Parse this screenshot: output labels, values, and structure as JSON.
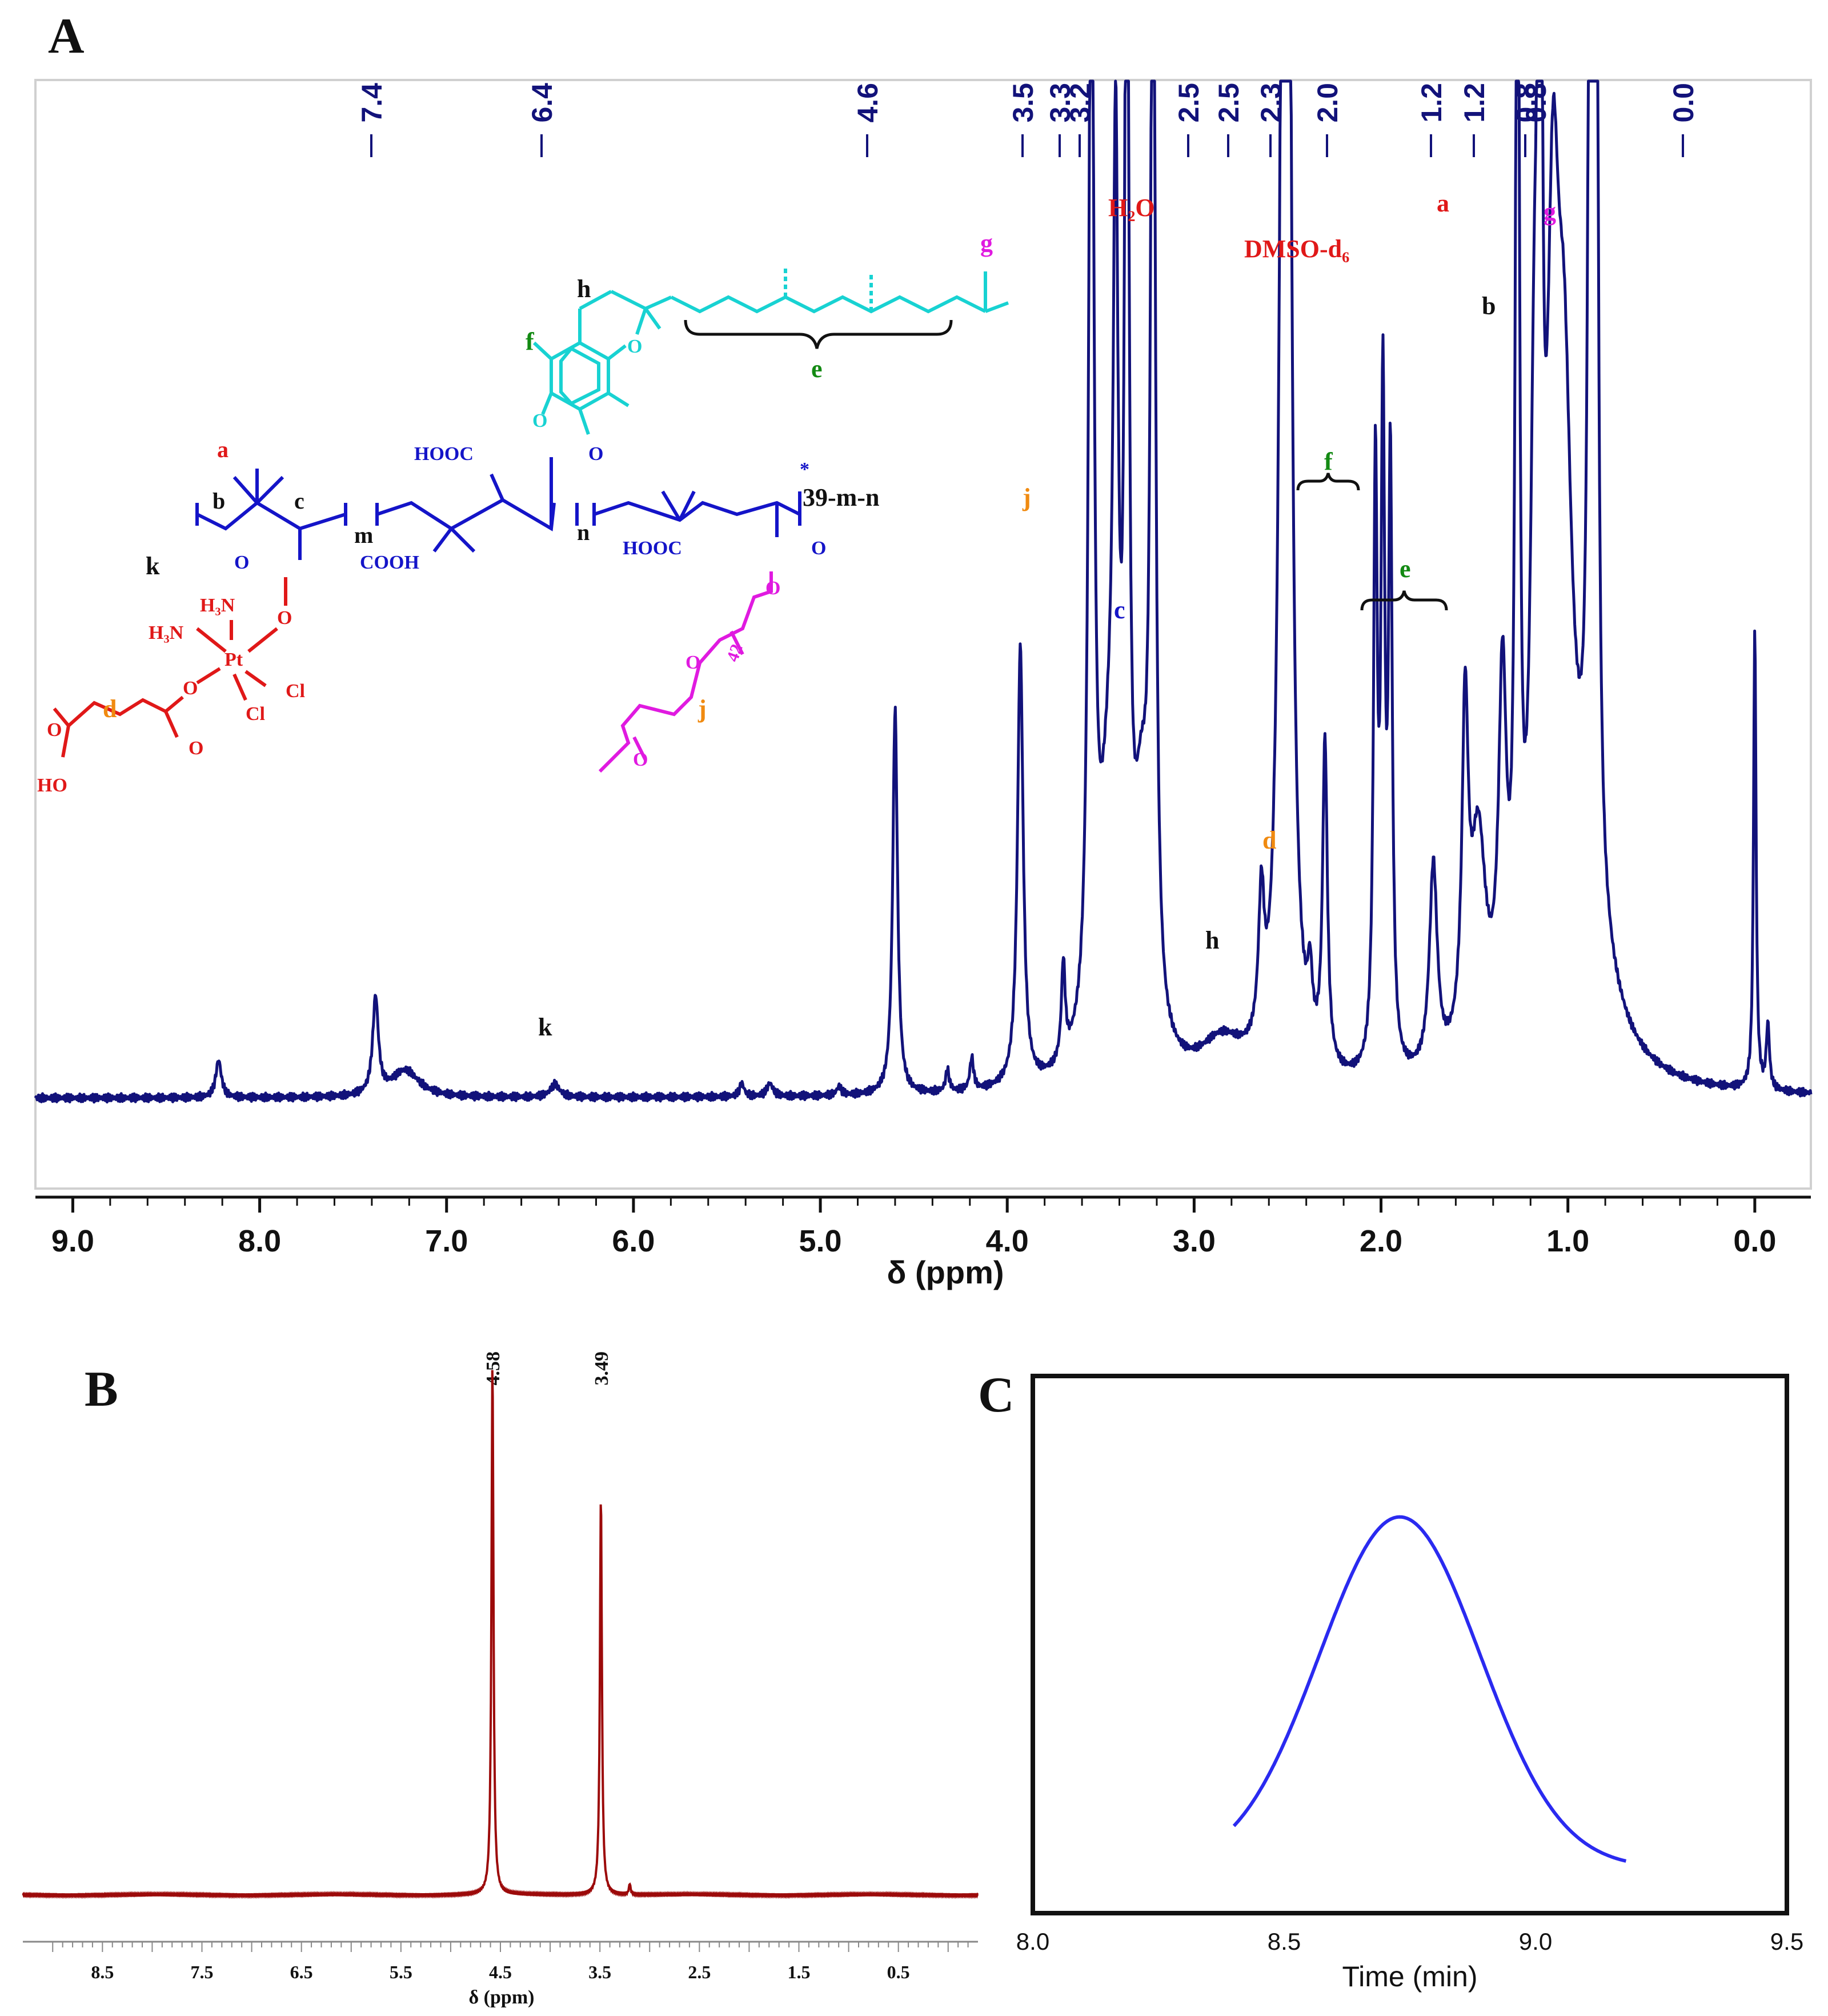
{
  "colors": {
    "navy": "#12127a",
    "blue": "#1414c8",
    "cyan": "#18d2d2",
    "red": "#e01818",
    "magenta": "#e01ae0",
    "green": "#138a13",
    "orange": "#f08a10",
    "darkred": "#9c0a0a",
    "lightblue": "#2a2af0",
    "black": "#111111"
  },
  "chart_data": [
    {
      "panel": "A",
      "type": "line",
      "title": "",
      "panel_label": "A",
      "xlabel": "δ (ppm)",
      "ylabel": "",
      "xlim": [
        9.2,
        -0.3
      ],
      "ylim": [
        -0.05,
        1.0
      ],
      "x_ticks": [
        "9.0",
        "8.0",
        "7.0",
        "6.0",
        "5.0",
        "4.0",
        "3.0",
        "2.0",
        "1.0",
        "0.0"
      ],
      "x_tick_values": [
        9,
        8,
        7,
        6,
        5,
        4,
        3,
        2,
        1,
        0
      ],
      "peak_labels": [
        "7.4",
        "6.4",
        "4.6",
        "3.5",
        "3.3",
        "3.2",
        "2.5",
        "2.5",
        "2.3",
        "2.0",
        "1.2",
        "1.2",
        "0.8",
        "0.8",
        "0.0"
      ],
      "peaks": [
        {
          "x": 8.22,
          "h": 0.035,
          "w": 0.018
        },
        {
          "x": 7.38,
          "h": 0.09,
          "w": 0.018
        },
        {
          "x": 7.22,
          "h": 0.025,
          "w": 0.09
        },
        {
          "x": 6.42,
          "h": 0.012,
          "w": 0.03
        },
        {
          "x": 5.42,
          "h": 0.012,
          "w": 0.015
        },
        {
          "x": 5.27,
          "h": 0.012,
          "w": 0.02
        },
        {
          "x": 4.9,
          "h": 0.008,
          "w": 0.015
        },
        {
          "x": 4.6,
          "h": 0.36,
          "w": 0.015
        },
        {
          "x": 4.32,
          "h": 0.02,
          "w": 0.012
        },
        {
          "x": 4.19,
          "h": 0.03,
          "w": 0.012
        },
        {
          "x": 3.93,
          "h": 0.41,
          "w": 0.018
        },
        {
          "x": 3.7,
          "h": 0.09,
          "w": 0.012
        },
        {
          "x": 3.55,
          "h": 1.2,
          "w": 0.015
        },
        {
          "x": 3.45,
          "h": 0.25,
          "w": 0.07
        },
        {
          "x": 3.42,
          "h": 0.65,
          "w": 0.015
        },
        {
          "x": 3.36,
          "h": 1.2,
          "w": 0.012
        },
        {
          "x": 3.28,
          "h": 0.2,
          "w": 0.05
        },
        {
          "x": 3.22,
          "h": 1.2,
          "w": 0.014
        },
        {
          "x": 2.85,
          "h": 0.04,
          "w": 0.15
        },
        {
          "x": 2.64,
          "h": 0.13,
          "w": 0.018
        },
        {
          "x": 2.52,
          "h": 1.2,
          "w": 0.022
        },
        {
          "x": 2.5,
          "h": 1.2,
          "w": 0.02
        },
        {
          "x": 2.38,
          "h": 0.06,
          "w": 0.015
        },
        {
          "x": 2.3,
          "h": 0.3,
          "w": 0.015
        },
        {
          "x": 2.03,
          "h": 0.55,
          "w": 0.012
        },
        {
          "x": 1.99,
          "h": 0.6,
          "w": 0.012
        },
        {
          "x": 1.95,
          "h": 0.55,
          "w": 0.012
        },
        {
          "x": 1.72,
          "h": 0.19,
          "w": 0.025
        },
        {
          "x": 1.55,
          "h": 0.3,
          "w": 0.02
        },
        {
          "x": 1.48,
          "h": 0.2,
          "w": 0.05
        },
        {
          "x": 1.35,
          "h": 0.32,
          "w": 0.025
        },
        {
          "x": 1.27,
          "h": 1.2,
          "w": 0.012
        },
        {
          "x": 1.18,
          "h": 0.45,
          "w": 0.025
        },
        {
          "x": 1.15,
          "h": 1.2,
          "w": 0.012
        },
        {
          "x": 1.08,
          "h": 0.6,
          "w": 0.04
        },
        {
          "x": 1.02,
          "h": 0.45,
          "w": 0.05
        },
        {
          "x": 0.88,
          "h": 1.2,
          "w": 0.012
        },
        {
          "x": 0.85,
          "h": 1.2,
          "w": 0.012
        },
        {
          "x": 0.9,
          "h": 0.15,
          "w": 0.15
        },
        {
          "x": 0.0,
          "h": 0.43,
          "w": 0.008
        },
        {
          "x": -0.07,
          "h": 0.06,
          "w": 0.01
        }
      ],
      "annotations": {
        "k": "k",
        "H2O": "H₂O",
        "DMSO": "DMSO-d₆",
        "a": "a",
        "b": "b",
        "c": "c",
        "d": "d",
        "e": "e",
        "f": "f",
        "g": "g",
        "h": "h",
        "j": "j"
      }
    },
    {
      "panel": "B",
      "type": "line",
      "panel_label": "B",
      "xlabel": "δ (ppm)",
      "xlim": [
        9.3,
        -0.3
      ],
      "x_ticks": [
        "8.5",
        "7.5",
        "6.5",
        "5.5",
        "4.5",
        "3.5",
        "2.5",
        "1.5",
        "0.5"
      ],
      "x_tick_values": [
        8.5,
        7.5,
        6.5,
        5.5,
        4.5,
        3.5,
        2.5,
        1.5,
        0.5
      ],
      "peak_labels": [
        "4.58",
        "3.49"
      ],
      "peaks": [
        {
          "x": 4.58,
          "h": 1.0,
          "w": 0.012
        },
        {
          "x": 3.49,
          "h": 0.75,
          "w": 0.012
        },
        {
          "x": 3.2,
          "h": 0.02,
          "w": 0.01
        }
      ]
    },
    {
      "panel": "C",
      "type": "line",
      "panel_label": "C",
      "xlabel": "Time (min)",
      "xlim": [
        8.0,
        9.5
      ],
      "x_ticks": [
        "8.0",
        "8.5",
        "9.0",
        "9.5"
      ],
      "x_tick_values": [
        8.0,
        8.5,
        9.0,
        9.5
      ],
      "curve": {
        "center": 8.73,
        "sigma": 0.16,
        "x_start": 8.4,
        "x_end": 9.18,
        "amplitude": 1.0
      }
    }
  ],
  "structure": {
    "labels": {
      "a": "a",
      "b": "b",
      "c": "c",
      "d": "d",
      "e": "e",
      "f": "f",
      "g": "g",
      "h": "h",
      "j": "j",
      "k": "k",
      "m": "m",
      "n": "n",
      "repeat": "39-m-n",
      "star": "*",
      "peg": "42",
      "hooc1": "HOOC",
      "hooc2": "HOOC",
      "cooh": "COOH",
      "o": "O",
      "h3n1": "H₃N",
      "h3n2": "H₃N",
      "pt": "Pt",
      "cl1": "Cl",
      "cl2": "Cl",
      "ho": "HO"
    }
  }
}
